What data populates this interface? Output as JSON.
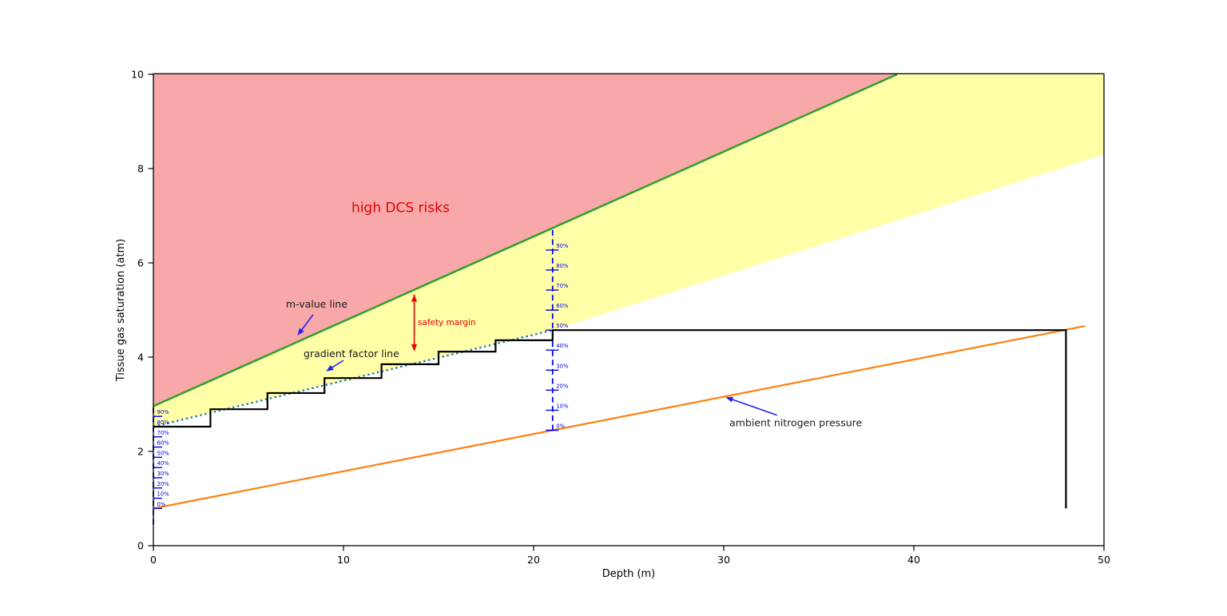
{
  "chart_data": {
    "type": "line",
    "title": "",
    "xlabel": "Depth (m)",
    "ylabel": "Tissue gas saturation (atm)",
    "xlim": [
      0,
      50
    ],
    "ylim": [
      0,
      10
    ],
    "xticks": [
      "0",
      "10",
      "20",
      "30",
      "40",
      "50"
    ],
    "xtick_values": [
      0,
      10,
      20,
      30,
      40,
      50
    ],
    "yticks": [
      "0",
      "2",
      "4",
      "6",
      "8",
      "10"
    ],
    "ytick_values": [
      0,
      2,
      4,
      6,
      8,
      10
    ],
    "grid": false,
    "legend": false,
    "regions": [
      {
        "name": "high-dcs-region",
        "fill": "#f8a8a8",
        "points": [
          [
            0,
            10
          ],
          [
            0,
            2.96
          ],
          [
            39.12,
            10
          ]
        ]
      },
      {
        "name": "caution-region",
        "fill": "#ffffa8",
        "points": [
          [
            0,
            2.96
          ],
          [
            0,
            2.526
          ],
          [
            21,
            4.573
          ],
          [
            50,
            8.3
          ],
          [
            50,
            10
          ],
          [
            39.12,
            10
          ]
        ]
      }
    ],
    "series": [
      {
        "name": "gradient factor line",
        "style": "dotted",
        "color": "#1f77b4",
        "width": 2.4,
        "points": [
          [
            0,
            2.526
          ],
          [
            21,
            4.573
          ]
        ]
      },
      {
        "name": "m-value line",
        "style": "solid",
        "color": "#2ca02c",
        "width": 2.5,
        "points": [
          [
            0,
            2.96
          ],
          [
            39.12,
            10
          ]
        ]
      },
      {
        "name": "ambient nitrogen pressure",
        "style": "solid",
        "color": "#ff7f0e",
        "width": 2.2,
        "points": [
          [
            0,
            0.79
          ],
          [
            49,
            4.66
          ]
        ]
      },
      {
        "name": "dive profile",
        "style": "solid",
        "color": "#000000",
        "width": 2.2,
        "points": [
          [
            48,
            0.79
          ],
          [
            48,
            4.573
          ],
          [
            21,
            4.573
          ],
          [
            21,
            4.358
          ],
          [
            18,
            4.358
          ],
          [
            18,
            4.116
          ],
          [
            15,
            4.116
          ],
          [
            15,
            3.849
          ],
          [
            12,
            3.849
          ],
          [
            12,
            3.556
          ],
          [
            9,
            3.556
          ],
          [
            9,
            3.238
          ],
          [
            6,
            3.238
          ],
          [
            6,
            2.895
          ],
          [
            3,
            2.895
          ],
          [
            3,
            2.526
          ],
          [
            0,
            2.526
          ]
        ]
      }
    ],
    "percent_scales": [
      {
        "name": "surface-gradient-scale",
        "x": 0,
        "y_from": 0.45,
        "y_to": 2.96,
        "color": "#0000ee",
        "ticks": [
          {
            "label": "0%",
            "y": 0.79
          },
          {
            "label": "10%",
            "y": 1.007
          },
          {
            "label": "20%",
            "y": 1.224
          },
          {
            "label": "30%",
            "y": 1.441
          },
          {
            "label": "40%",
            "y": 1.658
          },
          {
            "label": "50%",
            "y": 1.875
          },
          {
            "label": "60%",
            "y": 2.092
          },
          {
            "label": "70%",
            "y": 2.309
          },
          {
            "label": "80%",
            "y": 2.526
          },
          {
            "label": "90%",
            "y": 2.743
          }
        ]
      },
      {
        "name": "depth21-gradient-scale",
        "x": 21,
        "y_from": 2.449,
        "y_to": 6.698,
        "color": "#0000ee",
        "ticks": [
          {
            "label": "0%",
            "y": 2.449
          },
          {
            "label": "10%",
            "y": 2.874
          },
          {
            "label": "20%",
            "y": 3.299
          },
          {
            "label": "30%",
            "y": 3.724
          },
          {
            "label": "40%",
            "y": 4.149
          },
          {
            "label": "50%",
            "y": 4.573
          },
          {
            "label": "60%",
            "y": 4.998
          },
          {
            "label": "70%",
            "y": 5.423
          },
          {
            "label": "80%",
            "y": 5.848
          },
          {
            "label": "90%",
            "y": 6.273
          }
        ]
      }
    ],
    "annotations": [
      {
        "name": "high-dcs-risks-label",
        "text": "high DCS risks",
        "x": 13.0,
        "y": 7.08,
        "anchor": "middle",
        "class": "ann-red-big"
      },
      {
        "name": "m-value-line-label",
        "text": "m-value line",
        "x": 6.97,
        "y": 5.05,
        "anchor": "start",
        "class": "ann-black",
        "arrow": {
          "from": [
            8.4,
            4.9
          ],
          "to": [
            7.58,
            4.46
          ],
          "color": "#2222ee",
          "double": false
        }
      },
      {
        "name": "safety-margin-label",
        "text": "safety margin",
        "x": 13.9,
        "y": 4.68,
        "anchor": "start",
        "class": "ann-red-small",
        "arrow": {
          "from": [
            13.72,
            5.33
          ],
          "to": [
            13.72,
            4.12
          ],
          "color": "#e60000",
          "double": true
        }
      },
      {
        "name": "gradient-factor-line-label",
        "text": "gradient factor line",
        "x": 7.9,
        "y": 4.0,
        "anchor": "start",
        "class": "ann-black",
        "arrow": {
          "from": [
            10.0,
            3.93
          ],
          "to": [
            9.08,
            3.7
          ],
          "color": "#2222ee",
          "double": false
        }
      },
      {
        "name": "ambient-nitrogen-pressure-label",
        "text": "ambient nitrogen pressure",
        "x": 30.3,
        "y": 2.53,
        "anchor": "start",
        "class": "ann-black",
        "arrow": {
          "from": [
            32.8,
            2.77
          ],
          "to": [
            30.1,
            3.15
          ],
          "color": "#2222ee",
          "double": false
        }
      }
    ],
    "colors": {
      "m_value_line": "#2ca02c",
      "gradient_factor_line": "#1f77b4",
      "ambient_line": "#ff7f0e",
      "profile_line": "#000000",
      "dcs_fill": "#f8a8a8",
      "caution_fill": "#ffffa8",
      "scale_blue": "#0000ee",
      "annotation_red": "#e60000",
      "axis": "#000000"
    }
  }
}
